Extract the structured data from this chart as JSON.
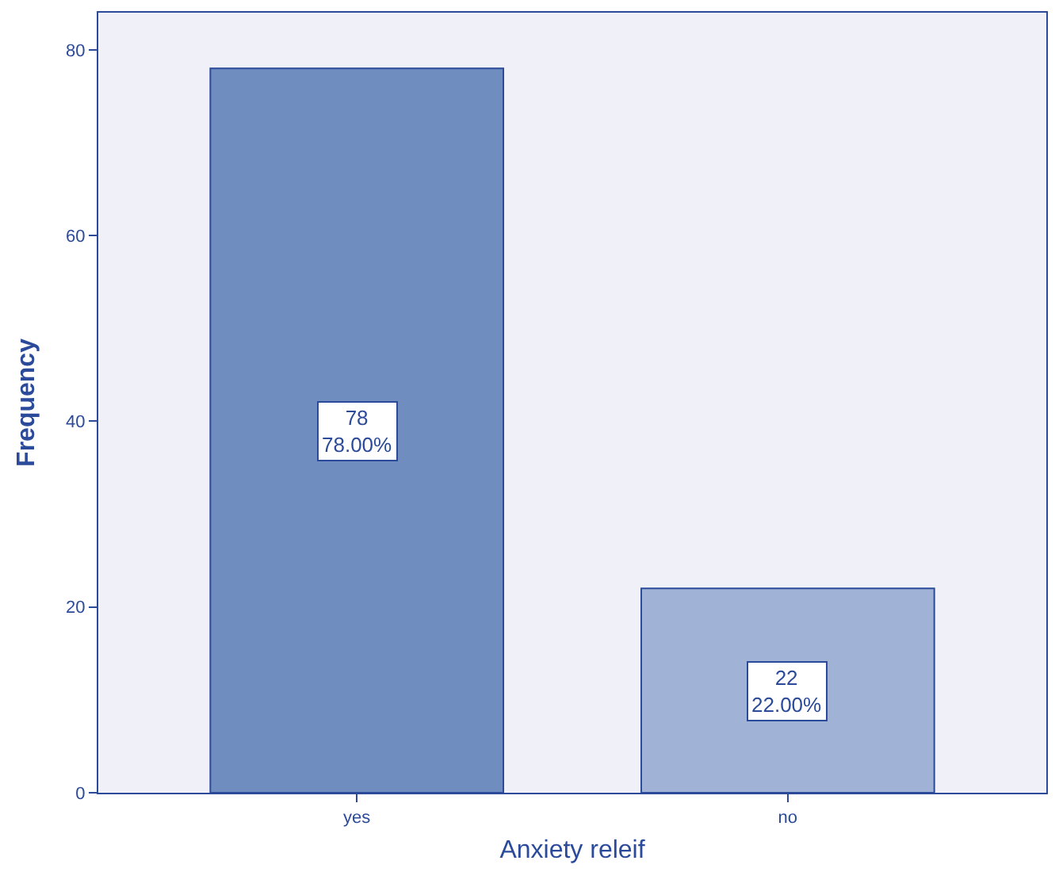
{
  "chart_data": {
    "type": "bar",
    "xlabel": "Anxiety releif",
    "ylabel": "Frequency",
    "categories": [
      "yes",
      "no"
    ],
    "values": [
      78,
      22
    ],
    "colors": [
      "#6f8dbf",
      "#a0b3d6"
    ],
    "value_labels": [
      "78\n78.00%",
      "22\n22.00%"
    ],
    "ylim": [
      0,
      84
    ],
    "yticks": [
      0,
      20,
      40,
      60,
      80
    ],
    "grid": false,
    "legend": false
  }
}
